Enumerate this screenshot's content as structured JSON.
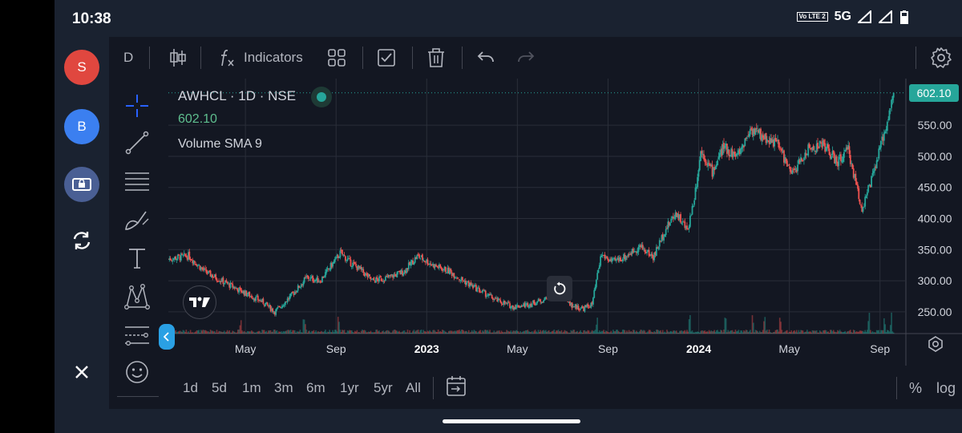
{
  "status_bar": {
    "time": "10:38",
    "volte": "Vo LTE 2",
    "network": "5G"
  },
  "left_rail": {
    "items": [
      {
        "name": "s-avatar",
        "label": "S",
        "color": "#e0473f"
      },
      {
        "name": "b-avatar",
        "label": "B",
        "color": "#3b7ff0"
      },
      {
        "name": "screen-lock",
        "icon": "lock-screen-icon",
        "color": "#4a5f94"
      },
      {
        "name": "rotate",
        "icon": "rotate-icon"
      },
      {
        "name": "close",
        "icon": "close-icon"
      }
    ]
  },
  "toolbar": {
    "interval": "D",
    "indicators_label": "Indicators"
  },
  "legend": {
    "title": "AWHCL · 1D · NSE",
    "price": "602.10",
    "volume_indicator": "Volume SMA 9"
  },
  "chart_data": {
    "type": "candlestick",
    "symbol": "AWHCL",
    "interval": "1D",
    "exchange": "NSE",
    "last_price": 602.1,
    "last_price_label": "602.10",
    "ylim": [
      215,
      625
    ],
    "y_ticks": [
      "550.00",
      "500.00",
      "450.00",
      "400.00",
      "350.00",
      "300.00",
      "250.00"
    ],
    "y_tick_values": [
      550,
      500,
      450,
      400,
      350,
      300,
      250
    ],
    "x_ticks": [
      {
        "label": "May",
        "bold": false
      },
      {
        "label": "Sep",
        "bold": false
      },
      {
        "label": "2023",
        "bold": true
      },
      {
        "label": "May",
        "bold": false
      },
      {
        "label": "Sep",
        "bold": false
      },
      {
        "label": "2024",
        "bold": true
      },
      {
        "label": "May",
        "bold": false
      },
      {
        "label": "Sep",
        "bold": false
      }
    ],
    "x_tick_months": [
      4,
      8,
      12,
      16,
      20,
      24,
      28,
      32
    ],
    "x_range_months": [
      0.6,
      33
    ],
    "price_path": [
      [
        0.6,
        335
      ],
      [
        1.5,
        340
      ],
      [
        2.2,
        315
      ],
      [
        3.2,
        295
      ],
      [
        4.0,
        280
      ],
      [
        4.8,
        265
      ],
      [
        5.3,
        250
      ],
      [
        6.0,
        275
      ],
      [
        6.7,
        305
      ],
      [
        7.3,
        300
      ],
      [
        7.8,
        325
      ],
      [
        8.2,
        345
      ],
      [
        8.6,
        330
      ],
      [
        9.0,
        320
      ],
      [
        9.6,
        300
      ],
      [
        10.3,
        305
      ],
      [
        11.0,
        315
      ],
      [
        11.6,
        340
      ],
      [
        12.3,
        325
      ],
      [
        13.0,
        315
      ],
      [
        13.6,
        300
      ],
      [
        14.3,
        285
      ],
      [
        15.0,
        270
      ],
      [
        15.8,
        258
      ],
      [
        16.5,
        262
      ],
      [
        17.2,
        270
      ],
      [
        17.6,
        287
      ],
      [
        18.0,
        280
      ],
      [
        18.4,
        260
      ],
      [
        18.9,
        255
      ],
      [
        19.3,
        262
      ],
      [
        19.7,
        342
      ],
      [
        20.2,
        330
      ],
      [
        20.8,
        340
      ],
      [
        21.4,
        355
      ],
      [
        22.0,
        338
      ],
      [
        22.5,
        380
      ],
      [
        23.0,
        410
      ],
      [
        23.5,
        380
      ],
      [
        23.8,
        432
      ],
      [
        24.1,
        510
      ],
      [
        24.6,
        475
      ],
      [
        25.1,
        515
      ],
      [
        25.7,
        500
      ],
      [
        26.3,
        545
      ],
      [
        26.9,
        530
      ],
      [
        27.5,
        520
      ],
      [
        28.1,
        470
      ],
      [
        28.8,
        510
      ],
      [
        29.5,
        520
      ],
      [
        30.1,
        490
      ],
      [
        30.6,
        510
      ],
      [
        31.2,
        415
      ],
      [
        31.7,
        470
      ],
      [
        32.2,
        540
      ],
      [
        32.6,
        602.1
      ]
    ],
    "volume_spikes_months": [
      3.8,
      6.6,
      8.1,
      19.5,
      23.6,
      25.2,
      26.4,
      26.9,
      27.6,
      31.5,
      32.2,
      32.5
    ],
    "colors": {
      "up": "#26a69a",
      "down": "#ef5350",
      "last_price": "#26a69a"
    }
  },
  "bottom_bar": {
    "ranges": [
      "1d",
      "5d",
      "1m",
      "3m",
      "6m",
      "1yr",
      "5yr",
      "All"
    ],
    "percent_label": "%",
    "log_label": "log"
  }
}
